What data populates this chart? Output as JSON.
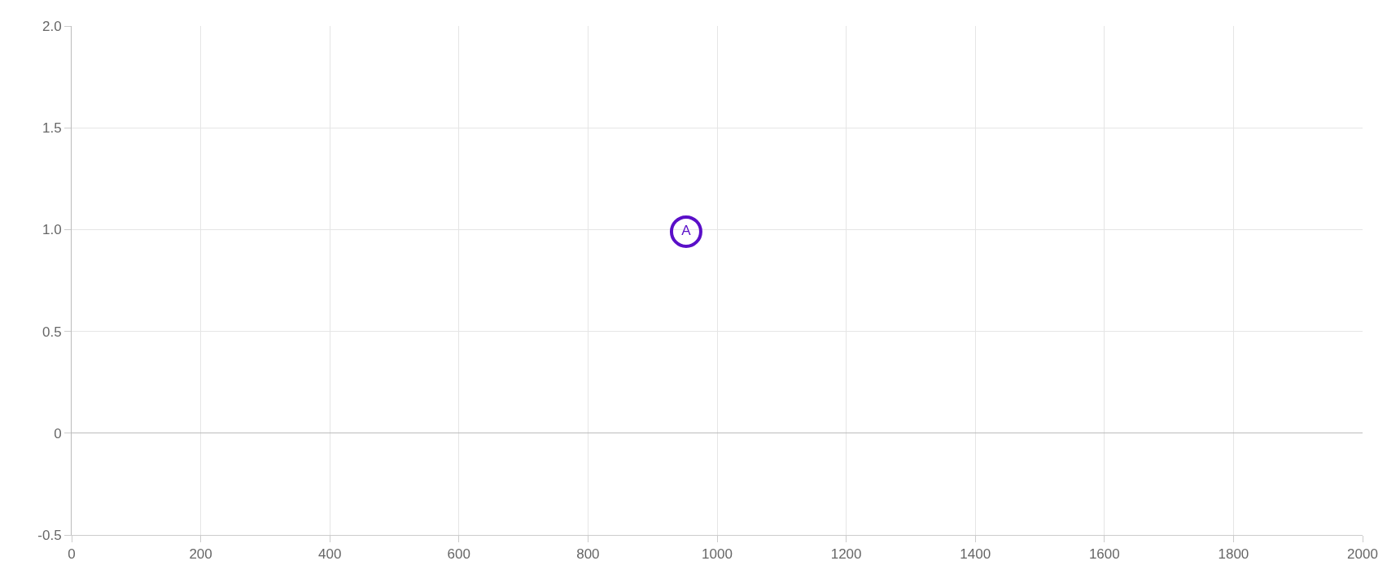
{
  "chart_data": {
    "type": "scatter",
    "x": [
      952
    ],
    "series": [
      {
        "color": "#5a0fc8",
        "values": [
          0.99
        ],
        "value_labels": [
          "A"
        ]
      }
    ],
    "xlim": [
      0,
      2000
    ],
    "xticks": [
      0,
      200,
      400,
      600,
      800,
      1000,
      1200,
      1400,
      1600,
      1800,
      2000
    ],
    "ylim": [
      -0.5,
      2.0
    ],
    "yticks": [
      {
        "value": -0.5,
        "label": "-0.5"
      },
      0,
      {
        "value": 0.5,
        "label": "0.5"
      },
      {
        "value": 1.0,
        "label": "1.0"
      },
      {
        "value": 1.5,
        "label": "1.5"
      },
      {
        "value": 2.0,
        "label": "2.0"
      }
    ],
    "grid": true,
    "marker": "circle",
    "legend": false
  }
}
